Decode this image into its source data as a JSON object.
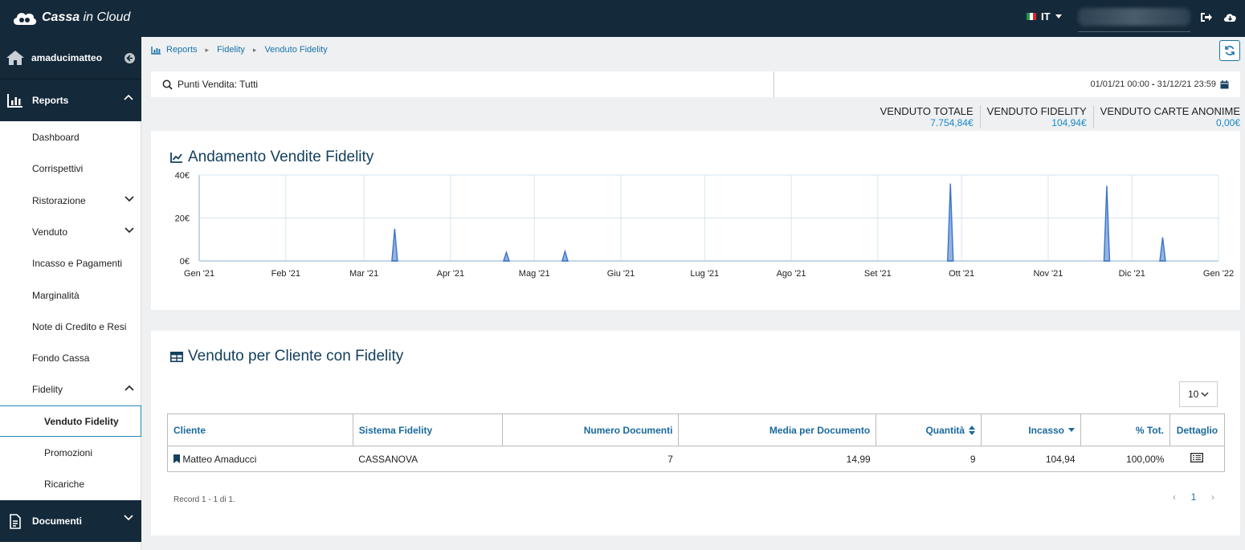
{
  "app": {
    "brand_bold": "Cassa",
    "brand_rest": " in Cloud",
    "language": "IT",
    "colors": {
      "navy": "#14293a",
      "accent": "#1a73a8",
      "chart_line": "#3b74c9"
    }
  },
  "sidebar": {
    "user": "amaducimatteo",
    "sections": {
      "reports": "Reports",
      "documenti": "Documenti"
    },
    "items": [
      {
        "label": "Dashboard"
      },
      {
        "label": "Corrispettivi"
      },
      {
        "label": "Ristorazione"
      },
      {
        "label": "Venduto"
      },
      {
        "label": "Incasso e Pagamenti"
      },
      {
        "label": "Marginalità"
      },
      {
        "label": "Note di Credito e Resi"
      },
      {
        "label": "Fondo Cassa"
      },
      {
        "label": "Fidelity"
      }
    ],
    "sub_items": [
      {
        "label": "Venduto Fidelity",
        "active": true
      },
      {
        "label": "Promozioni"
      },
      {
        "label": "Ricariche"
      }
    ]
  },
  "breadcrumb": [
    "Reports",
    "Fidelity",
    "Venduto Fidelity"
  ],
  "filter": {
    "points_of_sale": "Punti Vendita: Tutti",
    "date_from": "01/01/21 00:00",
    "date_sep": "-",
    "date_to": "31/12/21 23:59"
  },
  "totals": [
    {
      "label": "VENDUTO TOTALE",
      "value": "7.754,84€"
    },
    {
      "label": "VENDUTO FIDELITY",
      "value": "104,94€"
    },
    {
      "label": "VENDUTO CARTE ANONIME",
      "value": "0,00€"
    }
  ],
  "chart_card": {
    "title": "Andamento Vendite Fidelity"
  },
  "chart_data": {
    "type": "line",
    "title": "Andamento Vendite Fidelity",
    "x_ticks": [
      "Gen '21",
      "Feb '21",
      "Mar '21",
      "Apr '21",
      "Mag '21",
      "Giu '21",
      "Lug '21",
      "Ago '21",
      "Set '21",
      "Ott '21",
      "Nov '21",
      "Dic '21",
      "Gen '22"
    ],
    "y_ticks": [
      "0€",
      "20€",
      "40€"
    ],
    "ylim": [
      0,
      40
    ],
    "x_start": "2021-01-01",
    "x_end": "2022-01-01",
    "grid": true,
    "series": [
      {
        "points": [
          {
            "x": "2021-03-12",
            "y": 15
          },
          {
            "x": "2021-04-21",
            "y": 4
          },
          {
            "x": "2021-05-12",
            "y": 4.5
          },
          {
            "x": "2021-09-27",
            "y": 36
          },
          {
            "x": "2021-11-22",
            "y": 35
          },
          {
            "x": "2021-12-12",
            "y": 11
          }
        ]
      }
    ]
  },
  "table_card": {
    "title": "Venduto per Cliente con Fidelity",
    "page_size": "10",
    "columns": [
      "Cliente",
      "Sistema Fidelity",
      "Numero Documenti",
      "Media per Documento",
      "Quantità",
      "Incasso",
      "% Tot.",
      "Dettaglio"
    ],
    "rows": [
      {
        "cliente": "Matteo Amaducci",
        "sistema": "CASSANOVA",
        "numero": "7",
        "media": "14,99",
        "quantita": "9",
        "incasso": "104,94",
        "perc": "100,00%"
      }
    ],
    "record_info": "Record 1 - 1 di 1.",
    "current_page": "1"
  }
}
